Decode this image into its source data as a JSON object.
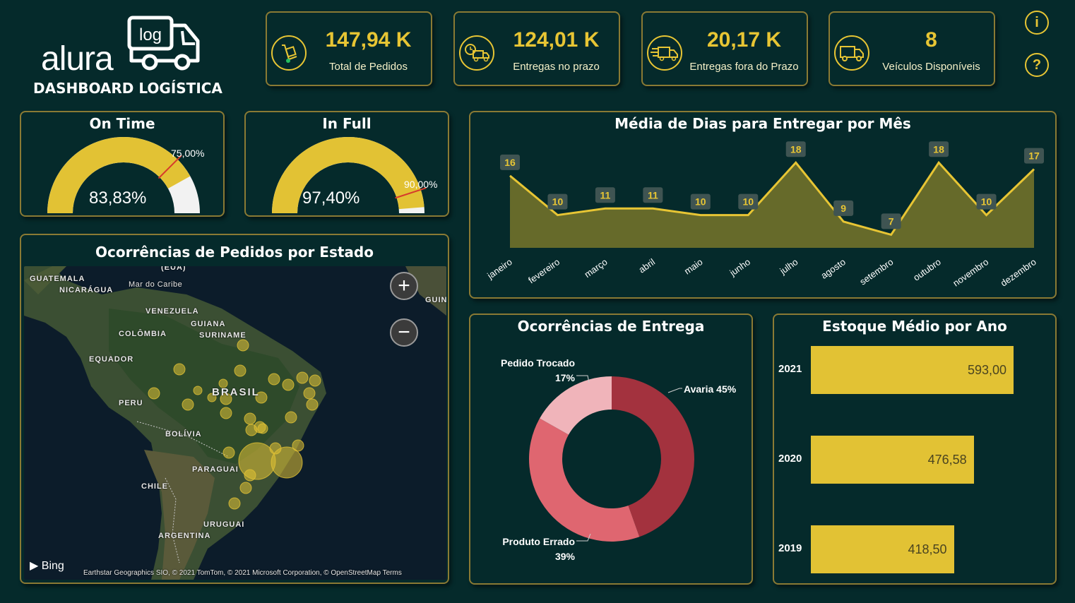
{
  "logo": {
    "text": "alura",
    "badge": "log",
    "subtitle": "DASHBOARD LOGÍSTICA"
  },
  "kpis": [
    {
      "value": "147,94 K",
      "label": "Total de Pedidos",
      "icon": "hand-truck-icon"
    },
    {
      "value": "124,01 K",
      "label": "Entregas no prazo",
      "icon": "clock-truck-icon"
    },
    {
      "value": "20,17 K",
      "label": "Entregas fora do Prazo",
      "icon": "fast-truck-icon"
    },
    {
      "value": "8",
      "label": "Veículos Disponíveis",
      "icon": "truck-icon"
    }
  ],
  "buttons": {
    "info": "i",
    "help": "?"
  },
  "on_time": {
    "title": "On Time",
    "value_label": "83,83%",
    "target_label": "75,00%",
    "value": 83.83,
    "target": 75
  },
  "in_full": {
    "title": "In Full",
    "value_label": "97,40%",
    "target_label": "90,00%",
    "value": 97.4,
    "target": 90
  },
  "map": {
    "title": "Ocorrências de Pedidos por Estado",
    "labels": {
      "guatemala": "GUATEMALA",
      "nicaragua": "NICARÁGUA",
      "eua": "(EUA)",
      "caribe": "Mar do Caribe",
      "guin": "GUIN",
      "venezuela": "VENEZUELA",
      "guiana": "GUIANA",
      "suriname": "SURINAME",
      "colombia": "COLÔMBIA",
      "equador": "EQUADOR",
      "brasil": "BRASIL",
      "peru": "PERU",
      "bolivia": "BOLÍVIA",
      "paraguai": "PARAGUAI",
      "chile": "CHILE",
      "uruguai": "URUGUAI",
      "argentina": "ARGENTINA"
    },
    "bing": "Bing",
    "attribution": "Earthstar Geographics SIO, © 2021 TomTom, © 2021 Microsoft Corporation, © OpenStreetMap  Terms",
    "zoom_in": "+",
    "zoom_out": "−"
  },
  "chart_data": [
    {
      "type": "area",
      "title": "Média de Dias para Entregar por Mês",
      "categories": [
        "janeiro",
        "fevereiro",
        "março",
        "abril",
        "maio",
        "junho",
        "julho",
        "agosto",
        "setembro",
        "outubro",
        "novembro",
        "dezembro"
      ],
      "values": [
        16,
        10,
        11,
        11,
        10,
        10,
        18,
        9,
        7,
        18,
        10,
        17
      ],
      "ylim": [
        0,
        20
      ]
    },
    {
      "type": "pie",
      "title": "Ocorrências de Entrega",
      "categories": [
        "Avaria",
        "Produto Errado",
        "Pedido Trocado"
      ],
      "values": [
        45,
        39,
        17
      ],
      "labels": [
        "Avaria 45%",
        "Produto Errado",
        "Pedido Trocado"
      ],
      "pct_labels": [
        "",
        "39%",
        "17%"
      ],
      "colors": [
        "#a3323e",
        "#df6670",
        "#f0b4ba"
      ]
    },
    {
      "type": "bar",
      "title": "Estoque Médio por Ano",
      "categories": [
        "2021",
        "2020",
        "2019"
      ],
      "values": [
        593.0,
        476.58,
        418.5
      ],
      "value_labels": [
        "593,00",
        "476,58",
        "418,50"
      ],
      "xlim": [
        0,
        700
      ]
    }
  ],
  "colors": {
    "background": "#052a2b",
    "accent": "#e7c534",
    "border": "#8a7a34",
    "area_fill": "#666a2a",
    "gauge_rest": "#f2f2f2",
    "target": "#d63b2c"
  }
}
